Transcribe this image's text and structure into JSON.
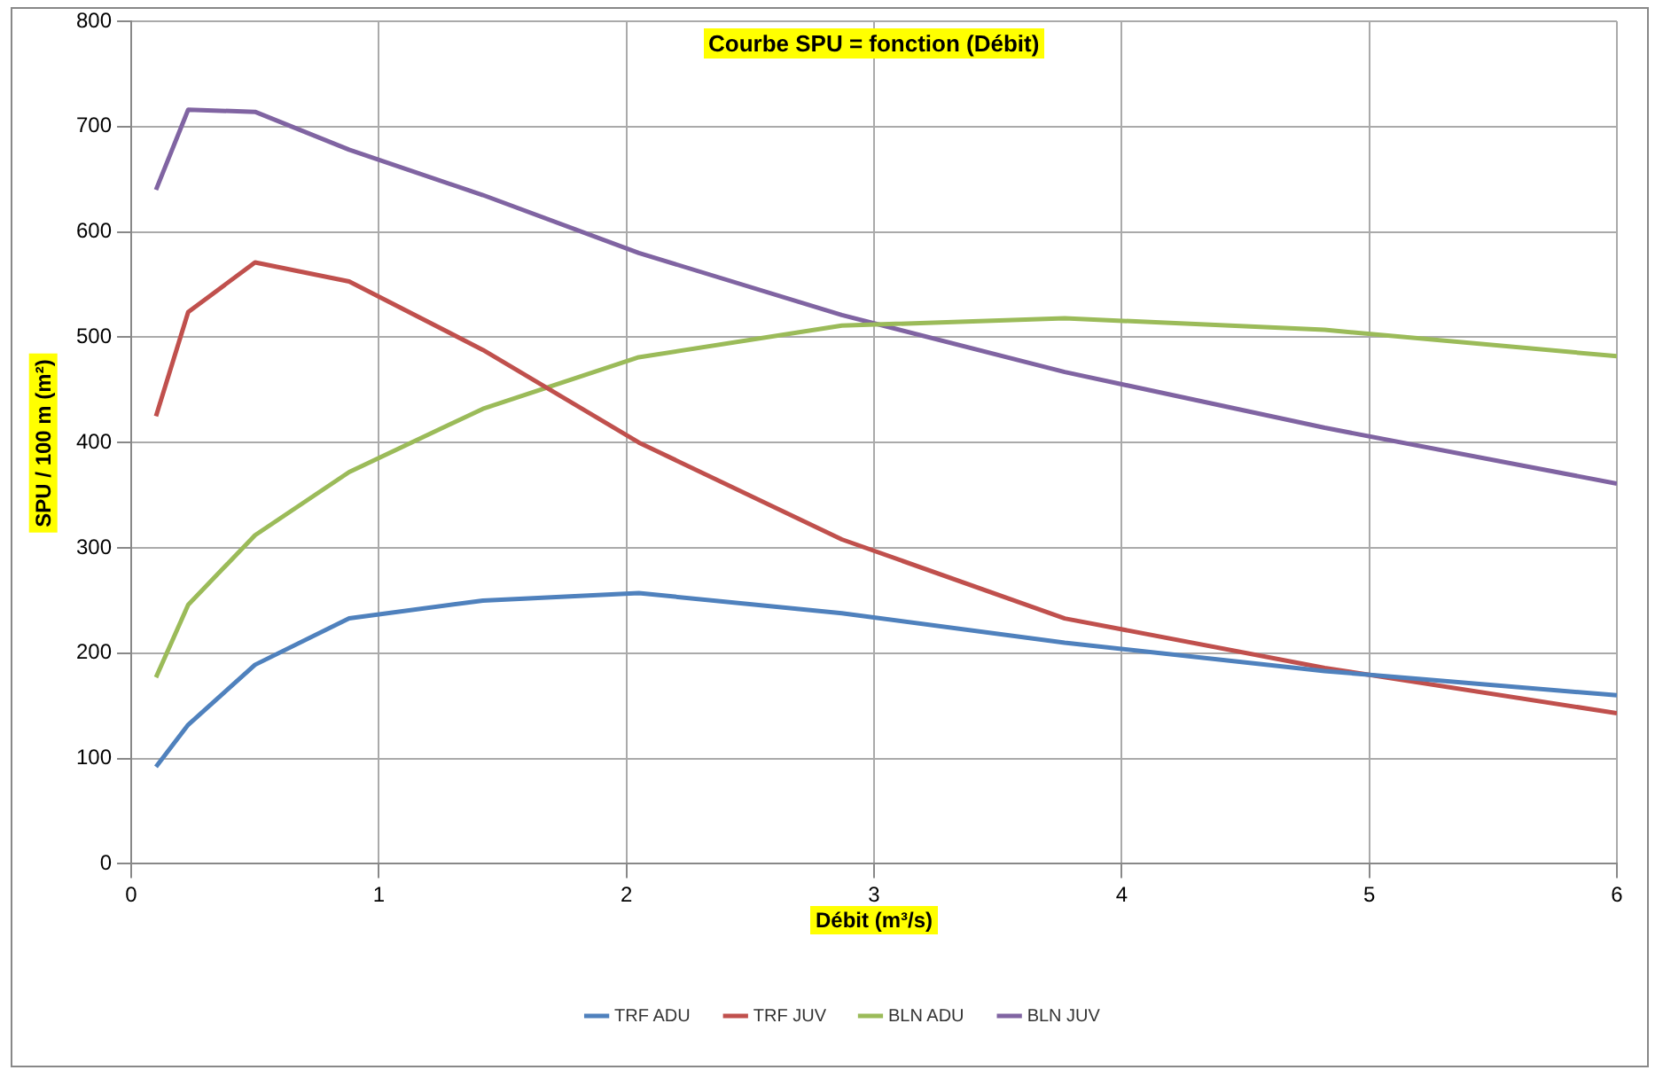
{
  "chart_data": {
    "type": "line",
    "title": "Courbe SPU = fonction (Débit)",
    "xlabel": "Débit (m³/s)",
    "ylabel": "SPU / 100 m (m²)",
    "x": [
      0.1,
      0.23,
      0.5,
      0.88,
      1.42,
      2.05,
      2.87,
      3.77,
      4.82,
      6
    ],
    "series": [
      {
        "name": "TRF ADU",
        "color": "#4f81bd",
        "values": [
          92,
          132,
          189,
          233,
          250,
          257,
          238,
          210,
          183,
          160
        ]
      },
      {
        "name": "TRF JUV",
        "color": "#c0504d",
        "values": [
          425,
          524,
          571,
          553,
          488,
          400,
          308,
          233,
          186,
          143
        ]
      },
      {
        "name": "BLN ADU",
        "color": "#9bbb59",
        "values": [
          177,
          246,
          312,
          372,
          432,
          481,
          511,
          518,
          507,
          482
        ]
      },
      {
        "name": "BLN JUV",
        "color": "#8064a2",
        "values": [
          640,
          716,
          714,
          678,
          635,
          580,
          521,
          467,
          414,
          361
        ]
      }
    ],
    "xlim": [
      0,
      6
    ],
    "xticks": [
      0,
      1,
      2,
      3,
      4,
      5,
      6
    ],
    "ylim": [
      0,
      800
    ],
    "yticks": [
      0,
      100,
      200,
      300,
      400,
      500,
      600,
      700,
      800
    ],
    "grid": true,
    "legend": "bottom",
    "marker": "none",
    "line_style": "solid"
  }
}
